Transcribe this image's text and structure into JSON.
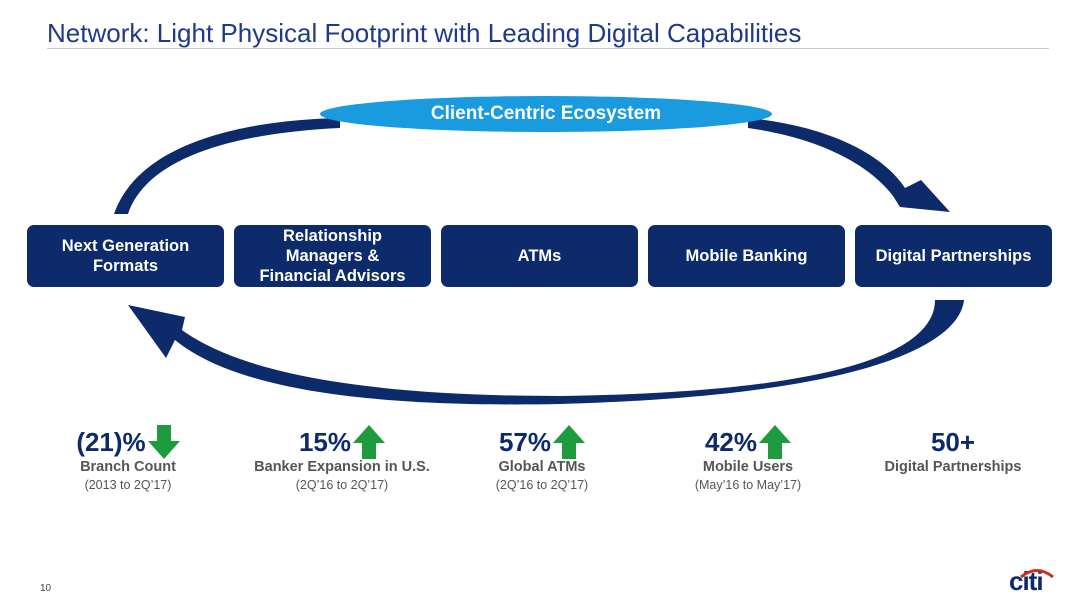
{
  "title": "Network: Light Physical Footprint with Leading Digital Capabilities",
  "ecosystem_label": "Client-Centric Ecosystem",
  "channels": [
    {
      "lines": [
        "Next Generation",
        "Formats"
      ]
    },
    {
      "lines": [
        "Relationship",
        "Managers &",
        "Financial Advisors"
      ]
    },
    {
      "lines": [
        "ATMs"
      ]
    },
    {
      "lines": [
        "Mobile Banking"
      ]
    },
    {
      "lines": [
        "Digital Partnerships"
      ]
    }
  ],
  "stats": [
    {
      "value": "(21)%",
      "label": "Branch Count",
      "period": "(2013 to 2Q’17)",
      "trend": "down"
    },
    {
      "value": "15%",
      "label": "Banker Expansion in U.S.",
      "period": "(2Q’16 to 2Q’17)",
      "trend": "up"
    },
    {
      "value": "57%",
      "label": "Global ATMs",
      "period": "(2Q’16 to 2Q’17)",
      "trend": "up"
    },
    {
      "value": "42%",
      "label": "Mobile Users",
      "period": "(May’16 to May’17)",
      "trend": "up"
    },
    {
      "value": "50+",
      "label": "Digital Partnerships",
      "period": "",
      "trend": "none"
    }
  ],
  "page_number": "10",
  "logo_text": "citi",
  "colors": {
    "navy": "#0d2a6b",
    "title_blue": "#1f3a8a",
    "ellipse_blue": "#1a9be0",
    "arrow_green": "#1e9b3f",
    "text_gray": "#555555"
  }
}
